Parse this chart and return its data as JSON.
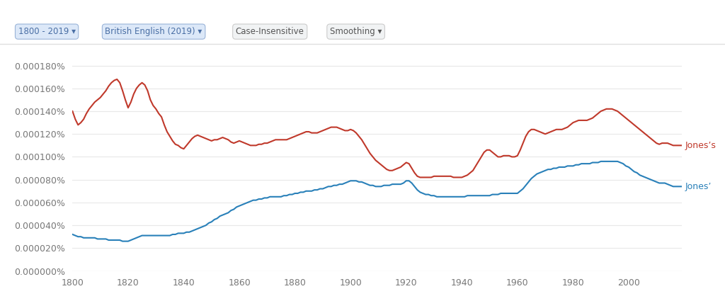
{
  "background_color": "#ffffff",
  "plot_bg_color": "#ffffff",
  "grid_color": "#e8e8e8",
  "xmin": 1800,
  "xmax": 2019,
  "ymin": 0.0,
  "ymax": 1.9e-06,
  "ytick_values": [
    0.0,
    2e-07,
    4e-07,
    6e-07,
    8e-07,
    1e-06,
    1.2e-06,
    1.4e-06,
    1.6e-06,
    1.8e-06
  ],
  "ytick_labels": [
    "0.000000%",
    "0.000020%",
    "0.000040%",
    "0.000060%",
    "0.000080%",
    "0.000100%",
    "0.000120%",
    "0.000140%",
    "0.000160%",
    "0.000180%"
  ],
  "xticks": [
    1800,
    1820,
    1840,
    1860,
    1880,
    1900,
    1920,
    1940,
    1960,
    1980,
    2000
  ],
  "label_jones_s": "Jones’s",
  "label_jones_ap": "Jones’",
  "color_jones_s": "#c0392b",
  "color_jones_ap": "#2980b9",
  "btn1_text": "1800 - 2019",
  "btn2_text": "British English (2019)",
  "btn3_text": "Case-Insensitive",
  "btn4_text": "Smoothing",
  "jones_s": [
    [
      1800,
      1.4e-06
    ],
    [
      1801,
      1.33e-06
    ],
    [
      1802,
      1.28e-06
    ],
    [
      1803,
      1.3e-06
    ],
    [
      1804,
      1.33e-06
    ],
    [
      1805,
      1.38e-06
    ],
    [
      1806,
      1.42e-06
    ],
    [
      1807,
      1.45e-06
    ],
    [
      1808,
      1.48e-06
    ],
    [
      1809,
      1.5e-06
    ],
    [
      1810,
      1.52e-06
    ],
    [
      1811,
      1.55e-06
    ],
    [
      1812,
      1.58e-06
    ],
    [
      1813,
      1.62e-06
    ],
    [
      1814,
      1.65e-06
    ],
    [
      1815,
      1.67e-06
    ],
    [
      1816,
      1.68e-06
    ],
    [
      1817,
      1.65e-06
    ],
    [
      1818,
      1.58e-06
    ],
    [
      1819,
      1.5e-06
    ],
    [
      1820,
      1.43e-06
    ],
    [
      1821,
      1.48e-06
    ],
    [
      1822,
      1.55e-06
    ],
    [
      1823,
      1.6e-06
    ],
    [
      1824,
      1.63e-06
    ],
    [
      1825,
      1.65e-06
    ],
    [
      1826,
      1.63e-06
    ],
    [
      1827,
      1.58e-06
    ],
    [
      1828,
      1.5e-06
    ],
    [
      1829,
      1.45e-06
    ],
    [
      1830,
      1.42e-06
    ],
    [
      1831,
      1.38e-06
    ],
    [
      1832,
      1.35e-06
    ],
    [
      1833,
      1.28e-06
    ],
    [
      1834,
      1.22e-06
    ],
    [
      1835,
      1.18e-06
    ],
    [
      1836,
      1.14e-06
    ],
    [
      1837,
      1.11e-06
    ],
    [
      1838,
      1.1e-06
    ],
    [
      1839,
      1.08e-06
    ],
    [
      1840,
      1.07e-06
    ],
    [
      1841,
      1.1e-06
    ],
    [
      1842,
      1.13e-06
    ],
    [
      1843,
      1.16e-06
    ],
    [
      1844,
      1.18e-06
    ],
    [
      1845,
      1.19e-06
    ],
    [
      1846,
      1.18e-06
    ],
    [
      1847,
      1.17e-06
    ],
    [
      1848,
      1.16e-06
    ],
    [
      1849,
      1.15e-06
    ],
    [
      1850,
      1.14e-06
    ],
    [
      1851,
      1.15e-06
    ],
    [
      1852,
      1.15e-06
    ],
    [
      1853,
      1.16e-06
    ],
    [
      1854,
      1.17e-06
    ],
    [
      1855,
      1.16e-06
    ],
    [
      1856,
      1.15e-06
    ],
    [
      1857,
      1.13e-06
    ],
    [
      1858,
      1.12e-06
    ],
    [
      1859,
      1.13e-06
    ],
    [
      1860,
      1.14e-06
    ],
    [
      1861,
      1.13e-06
    ],
    [
      1862,
      1.12e-06
    ],
    [
      1863,
      1.11e-06
    ],
    [
      1864,
      1.1e-06
    ],
    [
      1865,
      1.1e-06
    ],
    [
      1866,
      1.1e-06
    ],
    [
      1867,
      1.11e-06
    ],
    [
      1868,
      1.11e-06
    ],
    [
      1869,
      1.12e-06
    ],
    [
      1870,
      1.12e-06
    ],
    [
      1871,
      1.13e-06
    ],
    [
      1872,
      1.14e-06
    ],
    [
      1873,
      1.15e-06
    ],
    [
      1874,
      1.15e-06
    ],
    [
      1875,
      1.15e-06
    ],
    [
      1876,
      1.15e-06
    ],
    [
      1877,
      1.15e-06
    ],
    [
      1878,
      1.16e-06
    ],
    [
      1879,
      1.17e-06
    ],
    [
      1880,
      1.18e-06
    ],
    [
      1881,
      1.19e-06
    ],
    [
      1882,
      1.2e-06
    ],
    [
      1883,
      1.21e-06
    ],
    [
      1884,
      1.22e-06
    ],
    [
      1885,
      1.22e-06
    ],
    [
      1886,
      1.21e-06
    ],
    [
      1887,
      1.21e-06
    ],
    [
      1888,
      1.21e-06
    ],
    [
      1889,
      1.22e-06
    ],
    [
      1890,
      1.23e-06
    ],
    [
      1891,
      1.24e-06
    ],
    [
      1892,
      1.25e-06
    ],
    [
      1893,
      1.26e-06
    ],
    [
      1894,
      1.26e-06
    ],
    [
      1895,
      1.26e-06
    ],
    [
      1896,
      1.25e-06
    ],
    [
      1897,
      1.24e-06
    ],
    [
      1898,
      1.23e-06
    ],
    [
      1899,
      1.23e-06
    ],
    [
      1900,
      1.24e-06
    ],
    [
      1901,
      1.23e-06
    ],
    [
      1902,
      1.21e-06
    ],
    [
      1903,
      1.18e-06
    ],
    [
      1904,
      1.15e-06
    ],
    [
      1905,
      1.11e-06
    ],
    [
      1906,
      1.07e-06
    ],
    [
      1907,
      1.03e-06
    ],
    [
      1908,
      1e-06
    ],
    [
      1909,
      9.7e-07
    ],
    [
      1910,
      9.5e-07
    ],
    [
      1911,
      9.3e-07
    ],
    [
      1912,
      9.1e-07
    ],
    [
      1913,
      8.9e-07
    ],
    [
      1914,
      8.8e-07
    ],
    [
      1915,
      8.8e-07
    ],
    [
      1916,
      8.9e-07
    ],
    [
      1917,
      9e-07
    ],
    [
      1918,
      9.1e-07
    ],
    [
      1919,
      9.3e-07
    ],
    [
      1920,
      9.5e-07
    ],
    [
      1921,
      9.4e-07
    ],
    [
      1922,
      9e-07
    ],
    [
      1923,
      8.6e-07
    ],
    [
      1924,
      8.3e-07
    ],
    [
      1925,
      8.2e-07
    ],
    [
      1926,
      8.2e-07
    ],
    [
      1927,
      8.2e-07
    ],
    [
      1928,
      8.2e-07
    ],
    [
      1929,
      8.2e-07
    ],
    [
      1930,
      8.3e-07
    ],
    [
      1931,
      8.3e-07
    ],
    [
      1932,
      8.3e-07
    ],
    [
      1933,
      8.3e-07
    ],
    [
      1934,
      8.3e-07
    ],
    [
      1935,
      8.3e-07
    ],
    [
      1936,
      8.3e-07
    ],
    [
      1937,
      8.2e-07
    ],
    [
      1938,
      8.2e-07
    ],
    [
      1939,
      8.2e-07
    ],
    [
      1940,
      8.2e-07
    ],
    [
      1941,
      8.3e-07
    ],
    [
      1942,
      8.4e-07
    ],
    [
      1943,
      8.6e-07
    ],
    [
      1944,
      8.8e-07
    ],
    [
      1945,
      9.2e-07
    ],
    [
      1946,
      9.6e-07
    ],
    [
      1947,
      1e-06
    ],
    [
      1948,
      1.04e-06
    ],
    [
      1949,
      1.06e-06
    ],
    [
      1950,
      1.06e-06
    ],
    [
      1951,
      1.04e-06
    ],
    [
      1952,
      1.02e-06
    ],
    [
      1953,
      1e-06
    ],
    [
      1954,
      1e-06
    ],
    [
      1955,
      1.01e-06
    ],
    [
      1956,
      1.01e-06
    ],
    [
      1957,
      1.01e-06
    ],
    [
      1958,
      1e-06
    ],
    [
      1959,
      1e-06
    ],
    [
      1960,
      1.01e-06
    ],
    [
      1961,
      1.06e-06
    ],
    [
      1962,
      1.12e-06
    ],
    [
      1963,
      1.18e-06
    ],
    [
      1964,
      1.22e-06
    ],
    [
      1965,
      1.24e-06
    ],
    [
      1966,
      1.24e-06
    ],
    [
      1967,
      1.23e-06
    ],
    [
      1968,
      1.22e-06
    ],
    [
      1969,
      1.21e-06
    ],
    [
      1970,
      1.2e-06
    ],
    [
      1971,
      1.21e-06
    ],
    [
      1972,
      1.22e-06
    ],
    [
      1973,
      1.23e-06
    ],
    [
      1974,
      1.24e-06
    ],
    [
      1975,
      1.24e-06
    ],
    [
      1976,
      1.24e-06
    ],
    [
      1977,
      1.25e-06
    ],
    [
      1978,
      1.26e-06
    ],
    [
      1979,
      1.28e-06
    ],
    [
      1980,
      1.3e-06
    ],
    [
      1981,
      1.31e-06
    ],
    [
      1982,
      1.32e-06
    ],
    [
      1983,
      1.32e-06
    ],
    [
      1984,
      1.32e-06
    ],
    [
      1985,
      1.32e-06
    ],
    [
      1986,
      1.33e-06
    ],
    [
      1987,
      1.34e-06
    ],
    [
      1988,
      1.36e-06
    ],
    [
      1989,
      1.38e-06
    ],
    [
      1990,
      1.4e-06
    ],
    [
      1991,
      1.41e-06
    ],
    [
      1992,
      1.42e-06
    ],
    [
      1993,
      1.42e-06
    ],
    [
      1994,
      1.42e-06
    ],
    [
      1995,
      1.41e-06
    ],
    [
      1996,
      1.4e-06
    ],
    [
      1997,
      1.38e-06
    ],
    [
      1998,
      1.36e-06
    ],
    [
      1999,
      1.34e-06
    ],
    [
      2000,
      1.32e-06
    ],
    [
      2001,
      1.3e-06
    ],
    [
      2002,
      1.28e-06
    ],
    [
      2003,
      1.26e-06
    ],
    [
      2004,
      1.24e-06
    ],
    [
      2005,
      1.22e-06
    ],
    [
      2006,
      1.2e-06
    ],
    [
      2007,
      1.18e-06
    ],
    [
      2008,
      1.16e-06
    ],
    [
      2009,
      1.14e-06
    ],
    [
      2010,
      1.12e-06
    ],
    [
      2011,
      1.11e-06
    ],
    [
      2012,
      1.12e-06
    ],
    [
      2013,
      1.12e-06
    ],
    [
      2014,
      1.12e-06
    ],
    [
      2015,
      1.11e-06
    ],
    [
      2016,
      1.1e-06
    ],
    [
      2017,
      1.1e-06
    ],
    [
      2018,
      1.1e-06
    ],
    [
      2019,
      1.1e-06
    ]
  ],
  "jones_ap": [
    [
      1800,
      3.2e-07
    ],
    [
      1801,
      3.1e-07
    ],
    [
      1802,
      3e-07
    ],
    [
      1803,
      3e-07
    ],
    [
      1804,
      2.9e-07
    ],
    [
      1805,
      2.9e-07
    ],
    [
      1806,
      2.9e-07
    ],
    [
      1807,
      2.9e-07
    ],
    [
      1808,
      2.9e-07
    ],
    [
      1809,
      2.8e-07
    ],
    [
      1810,
      2.8e-07
    ],
    [
      1811,
      2.8e-07
    ],
    [
      1812,
      2.8e-07
    ],
    [
      1813,
      2.7e-07
    ],
    [
      1814,
      2.7e-07
    ],
    [
      1815,
      2.7e-07
    ],
    [
      1816,
      2.7e-07
    ],
    [
      1817,
      2.7e-07
    ],
    [
      1818,
      2.6e-07
    ],
    [
      1819,
      2.6e-07
    ],
    [
      1820,
      2.6e-07
    ],
    [
      1821,
      2.7e-07
    ],
    [
      1822,
      2.8e-07
    ],
    [
      1823,
      2.9e-07
    ],
    [
      1824,
      3e-07
    ],
    [
      1825,
      3.1e-07
    ],
    [
      1826,
      3.1e-07
    ],
    [
      1827,
      3.1e-07
    ],
    [
      1828,
      3.1e-07
    ],
    [
      1829,
      3.1e-07
    ],
    [
      1830,
      3.1e-07
    ],
    [
      1831,
      3.1e-07
    ],
    [
      1832,
      3.1e-07
    ],
    [
      1833,
      3.1e-07
    ],
    [
      1834,
      3.1e-07
    ],
    [
      1835,
      3.1e-07
    ],
    [
      1836,
      3.2e-07
    ],
    [
      1837,
      3.2e-07
    ],
    [
      1838,
      3.3e-07
    ],
    [
      1839,
      3.3e-07
    ],
    [
      1840,
      3.3e-07
    ],
    [
      1841,
      3.4e-07
    ],
    [
      1842,
      3.4e-07
    ],
    [
      1843,
      3.5e-07
    ],
    [
      1844,
      3.6e-07
    ],
    [
      1845,
      3.7e-07
    ],
    [
      1846,
      3.8e-07
    ],
    [
      1847,
      3.9e-07
    ],
    [
      1848,
      4e-07
    ],
    [
      1849,
      4.2e-07
    ],
    [
      1850,
      4.3e-07
    ],
    [
      1851,
      4.5e-07
    ],
    [
      1852,
      4.6e-07
    ],
    [
      1853,
      4.8e-07
    ],
    [
      1854,
      4.9e-07
    ],
    [
      1855,
      5e-07
    ],
    [
      1856,
      5.1e-07
    ],
    [
      1857,
      5.3e-07
    ],
    [
      1858,
      5.4e-07
    ],
    [
      1859,
      5.6e-07
    ],
    [
      1860,
      5.7e-07
    ],
    [
      1861,
      5.8e-07
    ],
    [
      1862,
      5.9e-07
    ],
    [
      1863,
      6e-07
    ],
    [
      1864,
      6.1e-07
    ],
    [
      1865,
      6.2e-07
    ],
    [
      1866,
      6.2e-07
    ],
    [
      1867,
      6.3e-07
    ],
    [
      1868,
      6.3e-07
    ],
    [
      1869,
      6.4e-07
    ],
    [
      1870,
      6.4e-07
    ],
    [
      1871,
      6.5e-07
    ],
    [
      1872,
      6.5e-07
    ],
    [
      1873,
      6.5e-07
    ],
    [
      1874,
      6.5e-07
    ],
    [
      1875,
      6.5e-07
    ],
    [
      1876,
      6.6e-07
    ],
    [
      1877,
      6.6e-07
    ],
    [
      1878,
      6.7e-07
    ],
    [
      1879,
      6.7e-07
    ],
    [
      1880,
      6.8e-07
    ],
    [
      1881,
      6.8e-07
    ],
    [
      1882,
      6.9e-07
    ],
    [
      1883,
      6.9e-07
    ],
    [
      1884,
      7e-07
    ],
    [
      1885,
      7e-07
    ],
    [
      1886,
      7e-07
    ],
    [
      1887,
      7.1e-07
    ],
    [
      1888,
      7.1e-07
    ],
    [
      1889,
      7.2e-07
    ],
    [
      1890,
      7.2e-07
    ],
    [
      1891,
      7.3e-07
    ],
    [
      1892,
      7.4e-07
    ],
    [
      1893,
      7.4e-07
    ],
    [
      1894,
      7.5e-07
    ],
    [
      1895,
      7.5e-07
    ],
    [
      1896,
      7.6e-07
    ],
    [
      1897,
      7.6e-07
    ],
    [
      1898,
      7.7e-07
    ],
    [
      1899,
      7.8e-07
    ],
    [
      1900,
      7.9e-07
    ],
    [
      1901,
      7.9e-07
    ],
    [
      1902,
      7.9e-07
    ],
    [
      1903,
      7.8e-07
    ],
    [
      1904,
      7.8e-07
    ],
    [
      1905,
      7.7e-07
    ],
    [
      1906,
      7.6e-07
    ],
    [
      1907,
      7.5e-07
    ],
    [
      1908,
      7.5e-07
    ],
    [
      1909,
      7.4e-07
    ],
    [
      1910,
      7.4e-07
    ],
    [
      1911,
      7.4e-07
    ],
    [
      1912,
      7.5e-07
    ],
    [
      1913,
      7.5e-07
    ],
    [
      1914,
      7.5e-07
    ],
    [
      1915,
      7.6e-07
    ],
    [
      1916,
      7.6e-07
    ],
    [
      1917,
      7.6e-07
    ],
    [
      1918,
      7.6e-07
    ],
    [
      1919,
      7.7e-07
    ],
    [
      1920,
      7.9e-07
    ],
    [
      1921,
      7.9e-07
    ],
    [
      1922,
      7.7e-07
    ],
    [
      1923,
      7.4e-07
    ],
    [
      1924,
      7.1e-07
    ],
    [
      1925,
      6.9e-07
    ],
    [
      1926,
      6.8e-07
    ],
    [
      1927,
      6.7e-07
    ],
    [
      1928,
      6.7e-07
    ],
    [
      1929,
      6.6e-07
    ],
    [
      1930,
      6.6e-07
    ],
    [
      1931,
      6.5e-07
    ],
    [
      1932,
      6.5e-07
    ],
    [
      1933,
      6.5e-07
    ],
    [
      1934,
      6.5e-07
    ],
    [
      1935,
      6.5e-07
    ],
    [
      1936,
      6.5e-07
    ],
    [
      1937,
      6.5e-07
    ],
    [
      1938,
      6.5e-07
    ],
    [
      1939,
      6.5e-07
    ],
    [
      1940,
      6.5e-07
    ],
    [
      1941,
      6.5e-07
    ],
    [
      1942,
      6.6e-07
    ],
    [
      1943,
      6.6e-07
    ],
    [
      1944,
      6.6e-07
    ],
    [
      1945,
      6.6e-07
    ],
    [
      1946,
      6.6e-07
    ],
    [
      1947,
      6.6e-07
    ],
    [
      1948,
      6.6e-07
    ],
    [
      1949,
      6.6e-07
    ],
    [
      1950,
      6.6e-07
    ],
    [
      1951,
      6.7e-07
    ],
    [
      1952,
      6.7e-07
    ],
    [
      1953,
      6.7e-07
    ],
    [
      1954,
      6.8e-07
    ],
    [
      1955,
      6.8e-07
    ],
    [
      1956,
      6.8e-07
    ],
    [
      1957,
      6.8e-07
    ],
    [
      1958,
      6.8e-07
    ],
    [
      1959,
      6.8e-07
    ],
    [
      1960,
      6.8e-07
    ],
    [
      1961,
      7e-07
    ],
    [
      1962,
      7.2e-07
    ],
    [
      1963,
      7.5e-07
    ],
    [
      1964,
      7.8e-07
    ],
    [
      1965,
      8.1e-07
    ],
    [
      1966,
      8.3e-07
    ],
    [
      1967,
      8.5e-07
    ],
    [
      1968,
      8.6e-07
    ],
    [
      1969,
      8.7e-07
    ],
    [
      1970,
      8.8e-07
    ],
    [
      1971,
      8.9e-07
    ],
    [
      1972,
      8.9e-07
    ],
    [
      1973,
      9e-07
    ],
    [
      1974,
      9e-07
    ],
    [
      1975,
      9.1e-07
    ],
    [
      1976,
      9.1e-07
    ],
    [
      1977,
      9.1e-07
    ],
    [
      1978,
      9.2e-07
    ],
    [
      1979,
      9.2e-07
    ],
    [
      1980,
      9.2e-07
    ],
    [
      1981,
      9.3e-07
    ],
    [
      1982,
      9.3e-07
    ],
    [
      1983,
      9.4e-07
    ],
    [
      1984,
      9.4e-07
    ],
    [
      1985,
      9.4e-07
    ],
    [
      1986,
      9.4e-07
    ],
    [
      1987,
      9.5e-07
    ],
    [
      1988,
      9.5e-07
    ],
    [
      1989,
      9.5e-07
    ],
    [
      1990,
      9.6e-07
    ],
    [
      1991,
      9.6e-07
    ],
    [
      1992,
      9.6e-07
    ],
    [
      1993,
      9.6e-07
    ],
    [
      1994,
      9.6e-07
    ],
    [
      1995,
      9.6e-07
    ],
    [
      1996,
      9.6e-07
    ],
    [
      1997,
      9.5e-07
    ],
    [
      1998,
      9.4e-07
    ],
    [
      1999,
      9.2e-07
    ],
    [
      2000,
      9.1e-07
    ],
    [
      2001,
      8.9e-07
    ],
    [
      2002,
      8.7e-07
    ],
    [
      2003,
      8.6e-07
    ],
    [
      2004,
      8.4e-07
    ],
    [
      2005,
      8.3e-07
    ],
    [
      2006,
      8.2e-07
    ],
    [
      2007,
      8.1e-07
    ],
    [
      2008,
      8e-07
    ],
    [
      2009,
      7.9e-07
    ],
    [
      2010,
      7.8e-07
    ],
    [
      2011,
      7.7e-07
    ],
    [
      2012,
      7.7e-07
    ],
    [
      2013,
      7.7e-07
    ],
    [
      2014,
      7.6e-07
    ],
    [
      2015,
      7.5e-07
    ],
    [
      2016,
      7.4e-07
    ],
    [
      2017,
      7.4e-07
    ],
    [
      2018,
      7.4e-07
    ],
    [
      2019,
      7.4e-07
    ]
  ]
}
